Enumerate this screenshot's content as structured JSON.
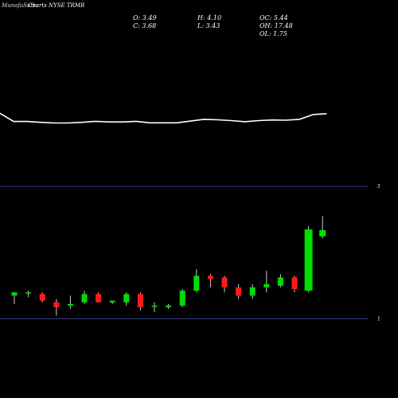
{
  "header": {
    "site_title": "MunafaSutra",
    "chart_title": "Charts NYSE TRMR"
  },
  "ohlc": {
    "o": "O: 3.49",
    "h": "H: 4.10",
    "oc": "OC: 5.44",
    "c": "C: 3.68",
    "l": "L: 3.43",
    "oh": "OH: 17.48",
    "ol": "OL: 1.75"
  },
  "chart_data": {
    "type": "candlestick",
    "line_series": [
      3.0,
      3.38,
      3.38,
      3.42,
      3.45,
      3.45,
      3.42,
      3.37,
      3.4,
      3.4,
      3.37,
      3.44,
      3.44,
      3.44,
      3.36,
      3.28,
      3.3,
      3.34,
      3.39,
      3.34,
      3.31,
      3.32,
      3.28,
      3.06,
      3.02
    ],
    "line_ylim": [
      2.0,
      4.2
    ],
    "price_ylim": [
      0.1,
      5.1
    ],
    "axis_ticks": [
      {
        "value": 5,
        "label": "5"
      },
      {
        "value": 1,
        "label": "1"
      }
    ],
    "candles": [
      {
        "o": 1.7,
        "h": 1.8,
        "l": 1.45,
        "c": 1.8
      },
      {
        "o": 1.8,
        "h": 1.85,
        "l": 1.65,
        "c": 1.8
      },
      {
        "o": 1.75,
        "h": 1.8,
        "l": 1.5,
        "c": 1.55
      },
      {
        "o": 1.5,
        "h": 1.6,
        "l": 1.1,
        "c": 1.35
      },
      {
        "o": 1.4,
        "h": 1.7,
        "l": 1.3,
        "c": 1.45
      },
      {
        "o": 1.5,
        "h": 1.85,
        "l": 1.45,
        "c": 1.75
      },
      {
        "o": 1.75,
        "h": 1.8,
        "l": 1.5,
        "c": 1.5
      },
      {
        "o": 1.5,
        "h": 1.55,
        "l": 1.45,
        "c": 1.55
      },
      {
        "o": 1.5,
        "h": 1.8,
        "l": 1.4,
        "c": 1.75
      },
      {
        "o": 1.75,
        "h": 1.8,
        "l": 1.25,
        "c": 1.35
      },
      {
        "o": 1.4,
        "h": 1.5,
        "l": 1.2,
        "c": 1.4
      },
      {
        "o": 1.35,
        "h": 1.45,
        "l": 1.3,
        "c": 1.4
      },
      {
        "o": 1.4,
        "h": 1.9,
        "l": 1.35,
        "c": 1.85
      },
      {
        "o": 1.85,
        "h": 2.5,
        "l": 1.8,
        "c": 2.3
      },
      {
        "o": 2.3,
        "h": 2.35,
        "l": 1.95,
        "c": 2.2
      },
      {
        "o": 2.25,
        "h": 2.3,
        "l": 1.8,
        "c": 1.95
      },
      {
        "o": 1.95,
        "h": 2.05,
        "l": 1.6,
        "c": 1.7
      },
      {
        "o": 1.7,
        "h": 2.05,
        "l": 1.6,
        "c": 1.95
      },
      {
        "o": 1.95,
        "h": 2.45,
        "l": 1.8,
        "c": 2.05
      },
      {
        "o": 2.0,
        "h": 2.35,
        "l": 1.95,
        "c": 2.25
      },
      {
        "o": 2.25,
        "h": 2.3,
        "l": 1.8,
        "c": 1.9
      },
      {
        "o": 1.85,
        "h": 3.8,
        "l": 1.8,
        "c": 3.7
      },
      {
        "o": 3.49,
        "h": 4.1,
        "l": 3.43,
        "c": 3.68
      }
    ],
    "colors": {
      "up": "#00dd00",
      "down": "#ff1a1a",
      "wick": "#cccccc",
      "line": "#ffffff",
      "axis_line": "#2d3c8a"
    }
  }
}
